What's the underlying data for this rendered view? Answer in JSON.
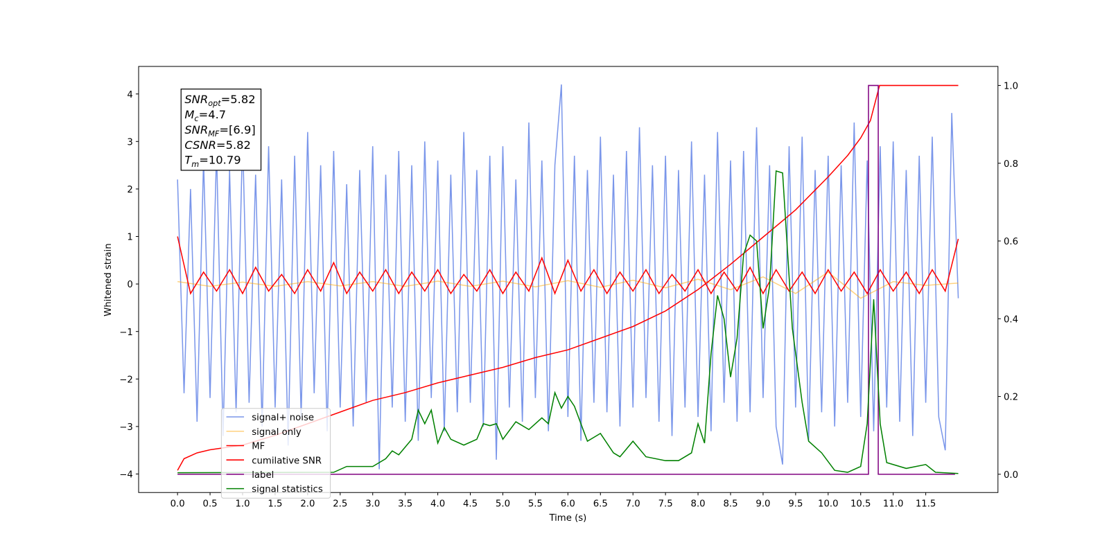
{
  "chart_data": {
    "type": "line",
    "xlabel": "Time (s)",
    "ylabel": "Whitened strain",
    "xlim": [
      -0.598,
      12.61
    ],
    "ylim": [
      -4.39,
      4.58
    ],
    "y2lim": [
      -0.047,
      1.049
    ],
    "xticks": [
      {
        "value": 0,
        "label": "0.0"
      },
      0.5,
      {
        "value": 1,
        "label": "1.0"
      },
      1.5,
      {
        "value": 2,
        "label": "2.0"
      },
      2.5,
      {
        "value": 3,
        "label": "3.0"
      },
      3.5,
      {
        "value": 4,
        "label": "4.0"
      },
      4.5,
      {
        "value": 5,
        "label": "5.0"
      },
      5.5,
      {
        "value": 6,
        "label": "6.0"
      },
      6.5,
      {
        "value": 7,
        "label": "7.0"
      },
      7.5,
      {
        "value": 8,
        "label": "8.0"
      },
      8.5,
      {
        "value": 9,
        "label": "9.0"
      },
      9.5,
      {
        "value": 10,
        "label": "10.0"
      },
      10.5,
      {
        "value": 11,
        "label": "11.0"
      },
      11.5
    ],
    "yticks": [
      {
        "value": -4,
        "label": "−4"
      },
      {
        "value": -3,
        "label": "−3"
      },
      {
        "value": -2,
        "label": "−2"
      },
      {
        "value": -1,
        "label": "−1"
      },
      0,
      1,
      2,
      3,
      4
    ],
    "y2ticks": [
      {
        "value": 0,
        "label": "0.0"
      },
      0.2,
      0.4,
      0.6,
      0.8,
      {
        "value": 1,
        "label": "1.0"
      }
    ],
    "legend": "lower left",
    "annotation": [
      {
        "name": "SNR",
        "sub": "opt",
        "text": "=5.82"
      },
      {
        "name": "M",
        "sub": "c",
        "text": "=4.7"
      },
      {
        "name": "SNR",
        "sub": "MF",
        "text": "=[6.9]"
      },
      {
        "name": "CSNR",
        "sub": "",
        "text": "=5.82"
      },
      {
        "name": "T",
        "sub": "m",
        "text": "=10.79"
      }
    ],
    "series": [
      {
        "name": "signal+ noise",
        "color": "#4169e1",
        "alpha": 0.7,
        "x": [
          0,
          0.1,
          0.2,
          0.3,
          0.4,
          0.5,
          0.6,
          0.7,
          0.8,
          0.9,
          1,
          1.1,
          1.2,
          1.3,
          1.4,
          1.5,
          1.6,
          1.7,
          1.8,
          1.9,
          2,
          2.1,
          2.2,
          2.3,
          2.4,
          2.5,
          2.6,
          2.7,
          2.8,
          2.9,
          3,
          3.1,
          3.2,
          3.3,
          3.4,
          3.5,
          3.6,
          3.7,
          3.8,
          3.9,
          4,
          4.1,
          4.2,
          4.3,
          4.4,
          4.5,
          4.6,
          4.7,
          4.8,
          4.9,
          5,
          5.1,
          5.2,
          5.3,
          5.4,
          5.5,
          5.6,
          5.7,
          5.8,
          5.9,
          6,
          6.1,
          6.2,
          6.3,
          6.4,
          6.5,
          6.6,
          6.7,
          6.8,
          6.9,
          7,
          7.1,
          7.2,
          7.3,
          7.4,
          7.5,
          7.6,
          7.7,
          7.8,
          7.9,
          8,
          8.1,
          8.2,
          8.3,
          8.4,
          8.5,
          8.6,
          8.7,
          8.8,
          8.9,
          9,
          9.1,
          9.2,
          9.3,
          9.4,
          9.5,
          9.6,
          9.7,
          9.8,
          9.9,
          10,
          10.1,
          10.2,
          10.3,
          10.4,
          10.5,
          10.6,
          10.7,
          10.8,
          10.9,
          11,
          11.1,
          11.2,
          11.3,
          11.4,
          11.5,
          11.6,
          11.7,
          11.8,
          11.9,
          12
        ],
        "values": [
          2.2,
          -2.3,
          2.0,
          -2.9,
          2.6,
          -2.4,
          2.8,
          -3.2,
          2.4,
          -2.7,
          3.1,
          -2.5,
          2.3,
          -3.0,
          2.9,
          -2.6,
          2.2,
          -3.4,
          2.7,
          -2.8,
          3.2,
          -2.3,
          2.5,
          -3.1,
          2.8,
          -2.6,
          2.1,
          -3.0,
          2.4,
          -2.5,
          2.9,
          -3.9,
          2.3,
          -2.6,
          2.8,
          -2.9,
          2.5,
          -3.3,
          3.0,
          -2.4,
          2.6,
          -3.1,
          2.3,
          -2.7,
          3.2,
          -2.5,
          2.4,
          -3.0,
          2.7,
          -3.7,
          2.9,
          -2.6,
          2.2,
          -2.9,
          3.4,
          -2.4,
          2.6,
          -3.1,
          2.5,
          4.2,
          -2.8,
          2.7,
          -3.3,
          2.4,
          -2.5,
          3.1,
          -2.7,
          2.3,
          -3.0,
          2.8,
          -2.6,
          3.3,
          -2.4,
          2.5,
          -2.9,
          2.7,
          -3.2,
          2.4,
          -2.6,
          3.0,
          -2.8,
          2.3,
          -3.1,
          3.2,
          -2.5,
          2.6,
          -2.9,
          2.8,
          -2.7,
          3.3,
          -2.4,
          2.5,
          -3.0,
          -3.8,
          2.9,
          -2.6,
          3.1,
          -3.3,
          2.4,
          -2.7,
          2.7,
          -3.0,
          2.5,
          -2.5,
          3.4,
          -2.8,
          2.6,
          -3.1,
          2.9,
          -2.6,
          3.0,
          -2.9,
          2.4,
          -3.2,
          2.7,
          -2.5,
          3.1,
          -2.8,
          -3.5,
          3.6,
          -0.3
        ]
      },
      {
        "name": "signal only",
        "color": "#ffa500",
        "alpha": 0.5,
        "x": [
          0,
          0.5,
          1,
          1.5,
          2,
          2.5,
          3,
          3.5,
          4,
          4.5,
          5,
          5.5,
          6,
          6.5,
          7,
          7.5,
          8,
          8.5,
          9,
          9.5,
          10,
          10.5,
          11,
          11.5,
          12
        ],
        "values": [
          0.05,
          -0.05,
          0.04,
          -0.05,
          0.05,
          -0.04,
          0.05,
          -0.05,
          0.06,
          -0.05,
          0.06,
          -0.06,
          0.07,
          -0.07,
          0.08,
          -0.08,
          0.1,
          -0.12,
          0.15,
          -0.2,
          0.25,
          -0.3,
          0.05,
          -0.03,
          0.02
        ]
      },
      {
        "name": "MF",
        "color": "#ff0000",
        "x": [
          0,
          0.2,
          0.4,
          0.6,
          0.8,
          1,
          1.2,
          1.4,
          1.6,
          1.8,
          2,
          2.2,
          2.4,
          2.6,
          2.8,
          3,
          3.2,
          3.4,
          3.6,
          3.8,
          4,
          4.2,
          4.4,
          4.6,
          4.8,
          5,
          5.2,
          5.4,
          5.6,
          5.8,
          6,
          6.2,
          6.4,
          6.6,
          6.8,
          7,
          7.2,
          7.4,
          7.6,
          7.8,
          8,
          8.2,
          8.4,
          8.6,
          8.8,
          9,
          9.2,
          9.4,
          9.6,
          9.8,
          10,
          10.2,
          10.4,
          10.6,
          10.8,
          11,
          11.2,
          11.4,
          11.6,
          11.8,
          12
        ],
        "values": [
          1.0,
          -0.2,
          0.25,
          -0.15,
          0.3,
          -0.2,
          0.35,
          -0.15,
          0.2,
          -0.2,
          0.3,
          -0.15,
          0.45,
          -0.2,
          0.25,
          -0.15,
          0.3,
          -0.2,
          0.25,
          -0.15,
          0.3,
          -0.2,
          0.2,
          -0.15,
          0.3,
          -0.2,
          0.25,
          -0.15,
          0.55,
          -0.2,
          0.5,
          -0.15,
          0.3,
          -0.2,
          0.25,
          -0.15,
          0.3,
          -0.2,
          0.2,
          -0.15,
          0.3,
          -0.2,
          0.25,
          -0.15,
          0.35,
          -0.2,
          0.3,
          -0.15,
          0.25,
          -0.2,
          0.3,
          -0.15,
          0.25,
          -0.2,
          0.3,
          -0.15,
          0.25,
          -0.2,
          0.3,
          -0.15,
          0.95
        ]
      },
      {
        "name": "cumilative SNR",
        "color": "#ff0000",
        "axis": "y2",
        "x": [
          0,
          0.1,
          0.3,
          0.5,
          1,
          1.5,
          2,
          2.5,
          3,
          3.5,
          4,
          4.5,
          5,
          5.5,
          6,
          6.5,
          7,
          7.5,
          8,
          8.5,
          9,
          9.5,
          10,
          10.3,
          10.5,
          10.65,
          10.79,
          12
        ],
        "values": [
          0.01,
          0.04,
          0.055,
          0.063,
          0.075,
          0.1,
          0.13,
          0.16,
          0.19,
          0.21,
          0.235,
          0.255,
          0.275,
          0.3,
          0.32,
          0.35,
          0.38,
          0.42,
          0.475,
          0.54,
          0.61,
          0.68,
          0.765,
          0.82,
          0.865,
          0.91,
          1.0,
          1.0
        ]
      },
      {
        "name": "label",
        "color": "#800080",
        "axis": "y2",
        "x": [
          0,
          10.62,
          10.62,
          10.77,
          10.77,
          11.95
        ],
        "values": [
          0,
          0,
          1,
          1,
          0,
          0
        ]
      },
      {
        "name": "signal statistics",
        "color": "#008000",
        "axis": "y2",
        "x": [
          0,
          2.4,
          2.6,
          3.0,
          3.2,
          3.3,
          3.4,
          3.6,
          3.7,
          3.8,
          3.9,
          4.0,
          4.1,
          4.2,
          4.4,
          4.6,
          4.7,
          4.8,
          4.9,
          5.0,
          5.2,
          5.4,
          5.6,
          5.7,
          5.8,
          5.9,
          6.0,
          6.1,
          6.3,
          6.5,
          6.7,
          6.8,
          7.0,
          7.2,
          7.5,
          7.7,
          7.9,
          8.0,
          8.1,
          8.2,
          8.3,
          8.4,
          8.5,
          8.6,
          8.7,
          8.8,
          8.9,
          9.0,
          9.1,
          9.2,
          9.3,
          9.45,
          9.6,
          9.7,
          9.9,
          10.1,
          10.3,
          10.5,
          10.6,
          10.7,
          10.8,
          10.9,
          11.2,
          11.5,
          11.65,
          12.0
        ],
        "values": [
          0.004,
          0.005,
          0.02,
          0.02,
          0.04,
          0.06,
          0.05,
          0.09,
          0.165,
          0.13,
          0.165,
          0.08,
          0.12,
          0.09,
          0.075,
          0.09,
          0.13,
          0.125,
          0.13,
          0.09,
          0.135,
          0.115,
          0.145,
          0.13,
          0.21,
          0.17,
          0.2,
          0.175,
          0.085,
          0.105,
          0.055,
          0.045,
          0.085,
          0.045,
          0.035,
          0.035,
          0.055,
          0.13,
          0.08,
          0.31,
          0.46,
          0.4,
          0.25,
          0.35,
          0.565,
          0.615,
          0.6,
          0.375,
          0.485,
          0.78,
          0.775,
          0.375,
          0.185,
          0.085,
          0.055,
          0.01,
          0.005,
          0.02,
          0.13,
          0.45,
          0.13,
          0.03,
          0.015,
          0.025,
          0.005,
          0.002
        ]
      }
    ]
  }
}
